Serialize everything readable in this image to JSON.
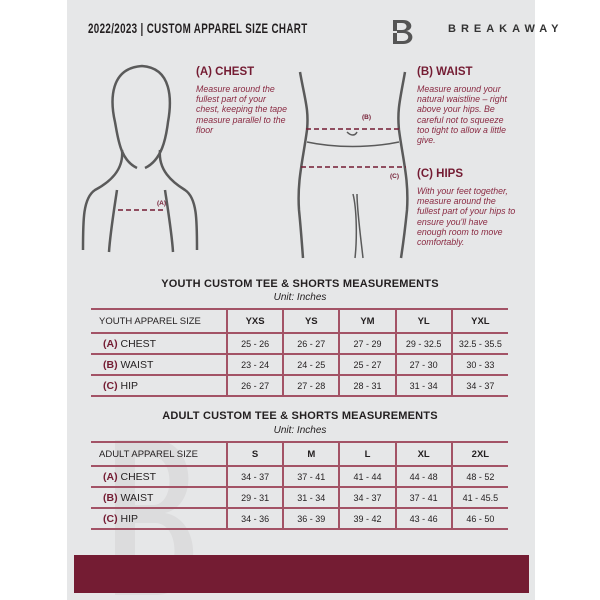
{
  "header": {
    "title": "2022/2023  |  CUSTOM APPAREL SIZE CHART",
    "brand": "BREAKAWAY",
    "logo_letter": "B"
  },
  "guide": {
    "chest": {
      "title": "(A) CHEST",
      "text": "Measure around the fullest part of your chest, keeping the tape measure parallel to the floor",
      "marker": "(A)"
    },
    "waist": {
      "title": "(B) WAIST",
      "text": "Measure around your natural waistline – right above your hips. Be careful not to squeeze too tight to allow a little give.",
      "marker": "(B)"
    },
    "hips": {
      "title": "(C) HIPS",
      "text": "With your feet together, measure around the fullest part of your hips to ensure you'll have enough room to move comfortably.",
      "marker": "(C)"
    }
  },
  "youth": {
    "title": "YOUTH CUSTOM TEE & SHORTS MEASUREMENTS",
    "unit": "Unit: Inches",
    "header": "YOUTH APPAREL SIZE",
    "sizes": [
      "YXS",
      "YS",
      "YM",
      "YL",
      "YXL"
    ],
    "rows": [
      {
        "letter": "(A)",
        "name": "CHEST",
        "values": [
          "25 - 26",
          "26 - 27",
          "27 - 29",
          "29 - 32.5",
          "32.5 - 35.5"
        ]
      },
      {
        "letter": "(B)",
        "name": "WAIST",
        "values": [
          "23 - 24",
          "24 - 25",
          "25 - 27",
          "27 - 30",
          "30 - 33"
        ]
      },
      {
        "letter": "(C)",
        "name": "HIP",
        "values": [
          "26 - 27",
          "27 - 28",
          "28 - 31",
          "31 - 34",
          "34 - 37"
        ]
      }
    ]
  },
  "adult": {
    "title": "ADULT CUSTOM TEE & SHORTS MEASUREMENTS",
    "unit": "Unit: Inches",
    "header": "ADULT APPAREL SIZE",
    "sizes": [
      "S",
      "M",
      "L",
      "XL",
      "2XL"
    ],
    "rows": [
      {
        "letter": "(A)",
        "name": "CHEST",
        "values": [
          "34 - 37",
          "37 - 41",
          "41 - 44",
          "44 - 48",
          "48 - 52"
        ]
      },
      {
        "letter": "(B)",
        "name": "WAIST",
        "values": [
          "29 - 31",
          "31 - 34",
          "34 - 37",
          "37 - 41",
          "41 - 45.5"
        ]
      },
      {
        "letter": "(C)",
        "name": "HIP",
        "values": [
          "34 - 36",
          "36 - 39",
          "39 - 42",
          "43 - 46",
          "46 - 50"
        ]
      }
    ]
  },
  "colors": {
    "accent": "#741c33",
    "panel": "#e6e7e8"
  }
}
